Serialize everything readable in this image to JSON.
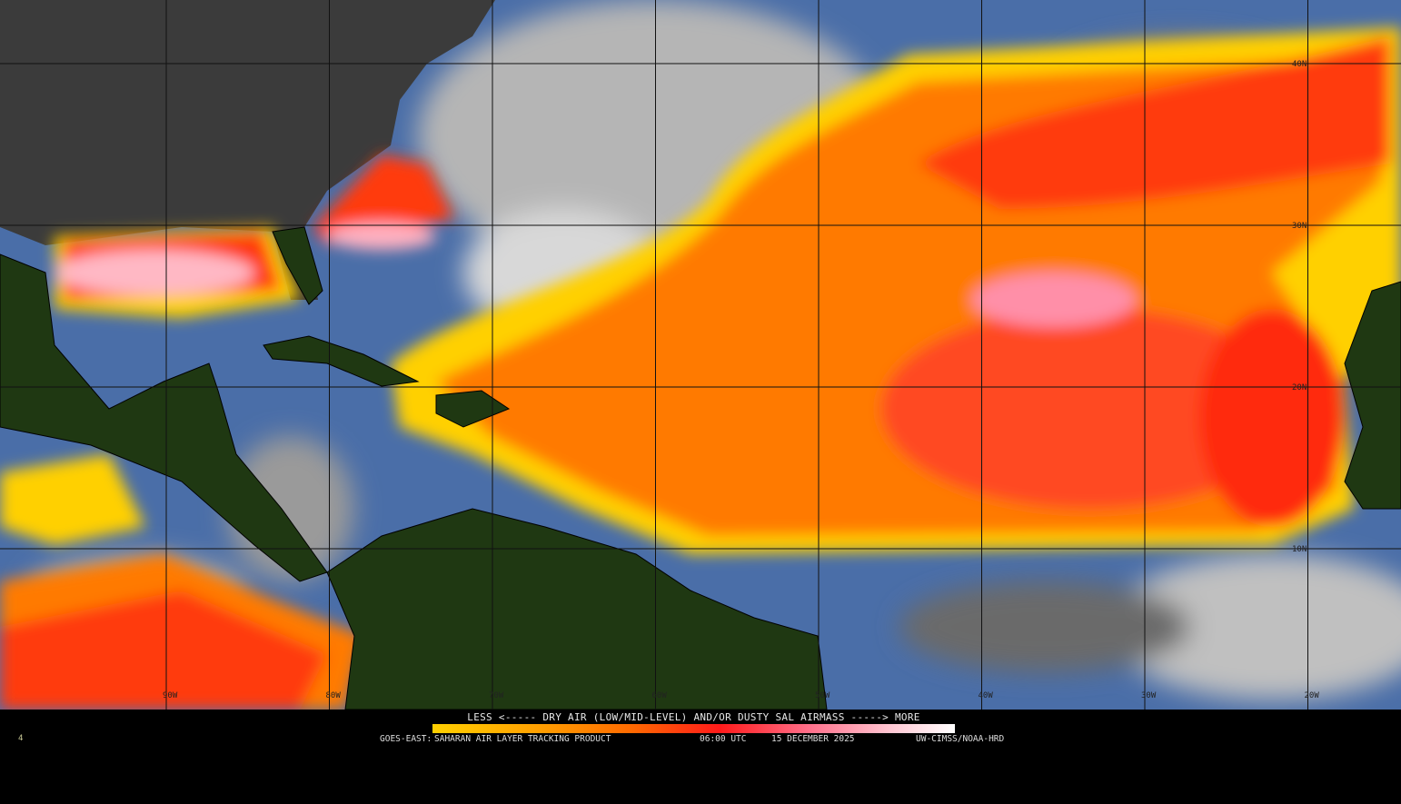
{
  "product": {
    "satellite": "GOES-EAST:",
    "title": "SAHARAN AIR LAYER TRACKING PRODUCT",
    "time": "06:00 UTC",
    "date": "15 DECEMBER 2025",
    "credit": "UW-CIMSS/NOAA-HRD",
    "corner_mark": "4"
  },
  "legend": {
    "text": "LESS <----- DRY AIR (LOW/MID-LEVEL) AND/OR DUSTY SAL AIRMASS -----> MORE",
    "colors": [
      "#ffd000",
      "#ffa000",
      "#ff6a00",
      "#ff1a1a",
      "#ff6f8a",
      "#ffc8d4",
      "#ffffff"
    ]
  },
  "grid": {
    "longitudes": [
      "90W",
      "80W",
      "70W",
      "60W",
      "50W",
      "40W",
      "30W",
      "20W"
    ],
    "latitudes": [
      "40N",
      "30N",
      "20N",
      "10N"
    ]
  },
  "colors": {
    "ocean_clear": "#4a6ea8",
    "land": "#1f3812",
    "us_land": "#3b3b3b",
    "cloud": "#b8b8b8",
    "sal_orange": "#ff7a00",
    "sal_red": "#ff2a10",
    "sal_pink": "#ff9fb0"
  }
}
